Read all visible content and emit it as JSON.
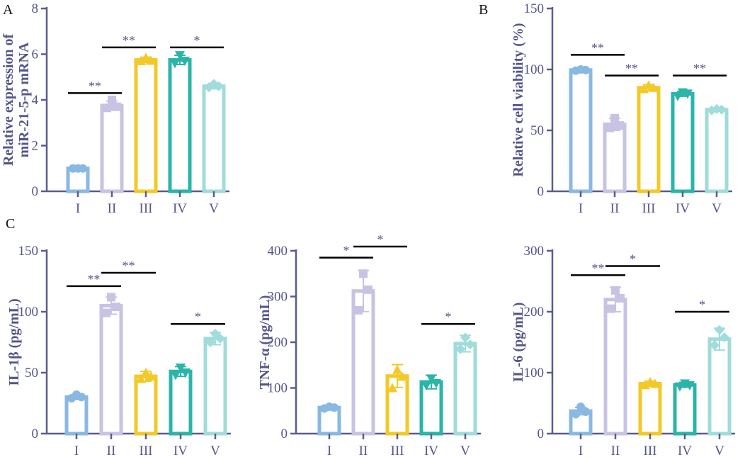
{
  "figure": {
    "panel_letters": [
      "A",
      "B",
      "C"
    ]
  },
  "colors": {
    "axis": "#5b5b8f",
    "text": "#55558a",
    "significance_line": "#000000",
    "groups": [
      "#89b8e3",
      "#c8c3e3",
      "#f3c927",
      "#2ab5a8",
      "#9fdcda"
    ]
  },
  "chart_data": [
    {
      "id": "A",
      "type": "bar",
      "categories": [
        "I",
        "II",
        "III",
        "IV",
        "V"
      ],
      "values": [
        1.0,
        3.75,
        5.75,
        5.75,
        4.6
      ],
      "errors": [
        0.05,
        0.2,
        0.12,
        0.2,
        0.12
      ],
      "points": [
        [
          1.0,
          1.0,
          1.0
        ],
        [
          3.65,
          3.7,
          4.0
        ],
        [
          5.7,
          5.72,
          5.85
        ],
        [
          5.6,
          5.7,
          5.95
        ],
        [
          4.55,
          4.6,
          4.7
        ]
      ],
      "marker": [
        "circle",
        "square",
        "triangle",
        "triangle-down",
        "diamond"
      ],
      "ylabel": [
        "Relative expression of",
        "miR-21-5-p mRNA"
      ],
      "ylim": [
        0,
        8
      ],
      "yticks": [
        0,
        2,
        4,
        6,
        8
      ],
      "significance": [
        {
          "from": 0,
          "to": 1,
          "label": "**",
          "y": 4.3
        },
        {
          "from": 1,
          "to": 2,
          "label": "**",
          "y": 6.3
        },
        {
          "from": 3,
          "to": 4,
          "label": "*",
          "y": 6.3
        }
      ]
    },
    {
      "id": "B",
      "type": "bar",
      "categories": [
        "I",
        "II",
        "III",
        "IV",
        "V"
      ],
      "values": [
        99.5,
        55,
        85,
        80,
        67
      ],
      "errors": [
        0.8,
        5,
        2.5,
        2,
        1
      ],
      "points": [
        [
          99,
          99.5,
          100
        ],
        [
          52,
          54,
          60
        ],
        [
          84,
          85,
          87
        ],
        [
          78,
          80,
          81
        ],
        [
          66.5,
          67,
          67.5
        ]
      ],
      "marker": [
        "circle",
        "square",
        "triangle",
        "triangle-down",
        "diamond"
      ],
      "ylabel": [
        "Relative cell viability (%)"
      ],
      "ylim": [
        0,
        150
      ],
      "yticks": [
        0,
        50,
        100,
        150
      ],
      "significance": [
        {
          "from": 0,
          "to": 1,
          "label": "**",
          "y": 112
        },
        {
          "from": 1,
          "to": 2,
          "label": "**",
          "y": 95
        },
        {
          "from": 3,
          "to": 4,
          "label": "**",
          "y": 95
        }
      ]
    },
    {
      "id": "C1",
      "type": "bar",
      "categories": [
        "I",
        "II",
        "III",
        "IV",
        "V"
      ],
      "values": [
        30,
        105,
        47,
        51,
        78
      ],
      "errors": [
        2,
        7,
        4,
        4,
        5
      ],
      "points": [
        [
          29,
          30,
          32
        ],
        [
          99,
          104,
          112
        ],
        [
          45,
          47,
          50
        ],
        [
          48,
          50,
          54
        ],
        [
          75,
          78,
          82
        ]
      ],
      "marker": [
        "circle",
        "square",
        "triangle",
        "triangle-down",
        "diamond"
      ],
      "ylabel": [
        "IL-1β (pg/mL)"
      ],
      "ylim": [
        0,
        150
      ],
      "yticks": [
        0,
        50,
        100,
        150
      ],
      "significance": [
        {
          "from": 0,
          "to": 1,
          "label": "**",
          "y": 121
        },
        {
          "from": 1,
          "to": 2,
          "label": "**",
          "y": 132
        },
        {
          "from": 3,
          "to": 4,
          "label": "*",
          "y": 90
        }
      ]
    },
    {
      "id": "C2",
      "type": "bar",
      "categories": [
        "I",
        "II",
        "III",
        "IV",
        "V"
      ],
      "values": [
        57,
        312,
        126,
        113,
        197
      ],
      "errors": [
        5,
        45,
        25,
        15,
        18
      ],
      "points": [
        [
          55,
          57,
          59
        ],
        [
          270,
          315,
          350
        ],
        [
          100,
          125,
          140
        ],
        [
          105,
          110,
          120
        ],
        [
          185,
          195,
          210
        ]
      ],
      "marker": [
        "circle",
        "square",
        "triangle",
        "triangle-down",
        "diamond"
      ],
      "ylabel": [
        "TNF-α (pg/mL)"
      ],
      "ylim": [
        0,
        400
      ],
      "yticks": [
        0,
        100,
        200,
        300,
        400
      ],
      "significance": [
        {
          "from": 0,
          "to": 1,
          "label": "*",
          "y": 385
        },
        {
          "from": 1,
          "to": 2,
          "label": "*",
          "y": 410
        },
        {
          "from": 3,
          "to": 4,
          "label": "*",
          "y": 240
        }
      ]
    },
    {
      "id": "C3",
      "type": "bar",
      "categories": [
        "I",
        "II",
        "III",
        "IV",
        "V"
      ],
      "values": [
        37,
        220,
        82,
        80,
        155
      ],
      "errors": [
        6,
        20,
        4,
        4,
        18
      ],
      "points": [
        [
          32,
          36,
          44
        ],
        [
          205,
          222,
          235
        ],
        [
          80,
          82,
          85
        ],
        [
          77,
          79,
          82
        ],
        [
          145,
          158,
          170
        ]
      ],
      "marker": [
        "circle",
        "square",
        "triangle",
        "triangle-down",
        "diamond"
      ],
      "ylabel": [
        "IL-6 (pg/mL)"
      ],
      "ylim": [
        0,
        300
      ],
      "yticks": [
        0,
        100,
        200,
        300
      ],
      "significance": [
        {
          "from": 0,
          "to": 1,
          "label": "**",
          "y": 260
        },
        {
          "from": 1,
          "to": 2,
          "label": "*",
          "y": 275
        },
        {
          "from": 3,
          "to": 4,
          "label": "*",
          "y": 200
        }
      ]
    }
  ]
}
